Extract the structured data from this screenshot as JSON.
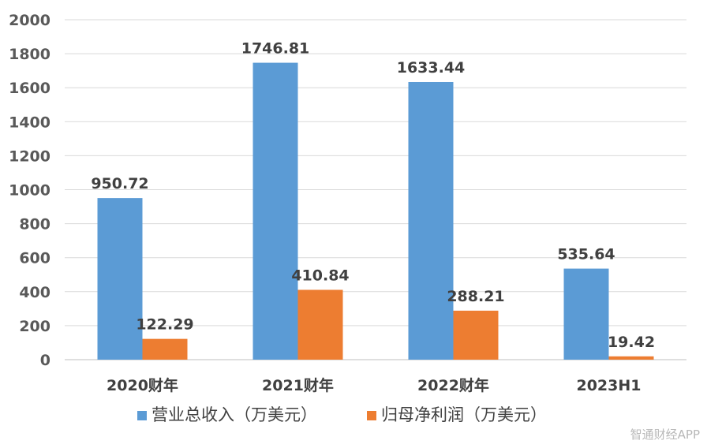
{
  "chart_data": {
    "type": "bar",
    "categories": [
      "2020财年",
      "2021财年",
      "2022财年",
      "2023H1"
    ],
    "series": [
      {
        "name": "营业总收入（万美元）",
        "values": [
          950.72,
          1746.81,
          1633.44,
          535.64
        ],
        "color": "#5b9bd5"
      },
      {
        "name": "归母净利润（万美元）",
        "values": [
          122.29,
          410.84,
          288.21,
          19.42
        ],
        "color": "#ed7d31"
      }
    ],
    "data_labels": [
      [
        "950.72",
        "1746.81",
        "1633.44",
        "535.64"
      ],
      [
        "122.29",
        "410.84",
        "288.21",
        "19.42"
      ]
    ],
    "ylim": [
      0,
      2000
    ],
    "yticks": [
      0,
      200,
      400,
      600,
      800,
      1000,
      1200,
      1400,
      1600,
      1800,
      2000
    ],
    "grid": true,
    "legend_position": "bottom"
  },
  "watermark": "智通财经APP"
}
